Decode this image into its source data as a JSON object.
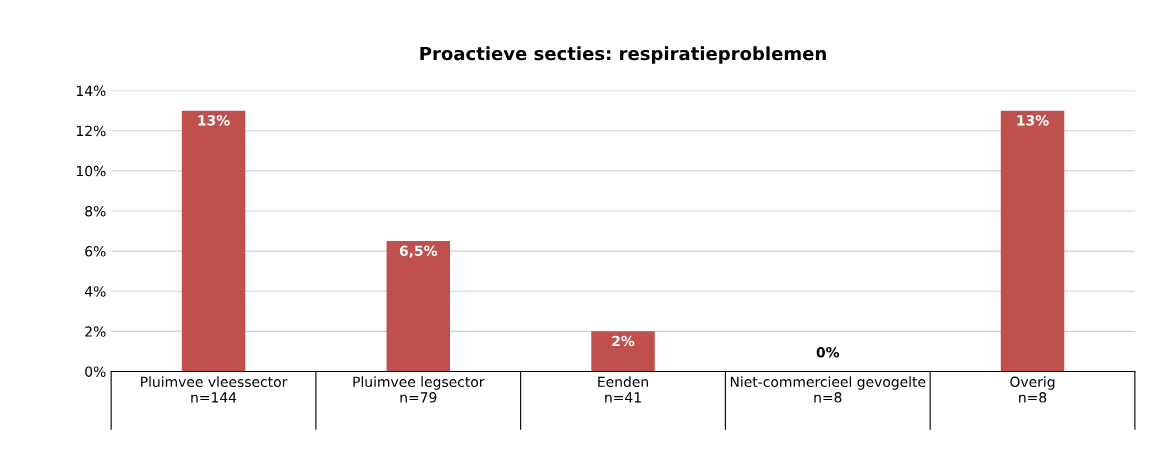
{
  "chart_data": {
    "type": "bar",
    "title": "Proactieve secties: respiratieproblemen",
    "categories": [
      "Pluimvee vleessector\nn=144",
      "Pluimvee legsector\nn=79",
      "Eenden\nn=41",
      "Niet-commercieel gevogelte\nn=8",
      "Overig\nn=8"
    ],
    "values": [
      13,
      6.5,
      2,
      0,
      13
    ],
    "value_labels": [
      "13%",
      "6,5%",
      "2%",
      "0%",
      "13%"
    ],
    "color": "#c0504d",
    "ylim": [
      0,
      14
    ],
    "yticks": [
      {
        "value": 0,
        "label": "0%"
      },
      {
        "value": 2,
        "label": "2%"
      },
      {
        "value": 4,
        "label": "4%"
      },
      {
        "value": 6,
        "label": "6%"
      },
      {
        "value": 8,
        "label": "8%"
      },
      {
        "value": 10,
        "label": "10%"
      },
      {
        "value": 12,
        "label": "12%"
      },
      {
        "value": 14,
        "label": "14%"
      }
    ],
    "grid": "y"
  }
}
